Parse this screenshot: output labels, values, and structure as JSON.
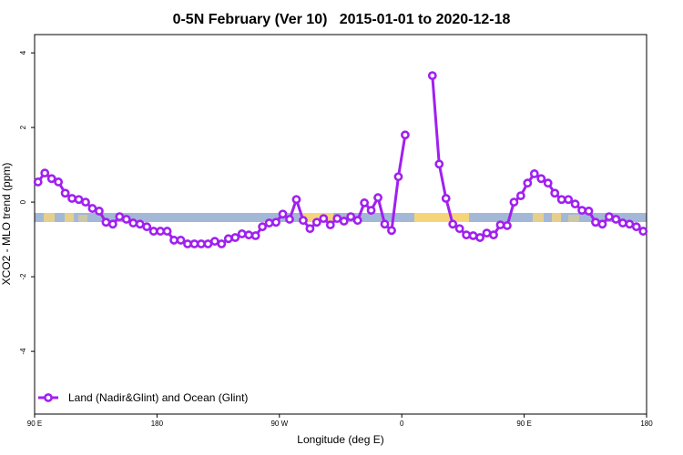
{
  "chart_data": {
    "type": "line",
    "title": "0-5N February (Ver 10)   2015-01-01 to 2020-12-18",
    "x_label": "Longitude (deg E)",
    "y_label": "XCO2 - MLO trend (ppm)",
    "xlim": [
      90,
      540
    ],
    "ylim": [
      -5.68,
      4.49
    ],
    "xticks": [
      {
        "value": 90,
        "label": "90 E"
      },
      180,
      {
        "value": 270,
        "label": "90 W"
      },
      {
        "value": 360,
        "label": "0"
      },
      {
        "value": 450,
        "label": "90 E"
      },
      {
        "value": 540,
        "label": "180"
      }
    ],
    "yticks": [
      4,
      2,
      0,
      -2,
      -4
    ],
    "grid": false,
    "legend": "bottom-left",
    "x": [
      92.5,
      97.5,
      102.5,
      107.5,
      112.5,
      117.5,
      122.5,
      127.5,
      132.5,
      137.5,
      142.5,
      147.5,
      152.5,
      157.5,
      162.5,
      167.5,
      172.5,
      177.5,
      182.5,
      187.5,
      192.5,
      197.5,
      202.5,
      207.5,
      212.5,
      217.5,
      222.5,
      227.5,
      232.5,
      237.5,
      242.5,
      247.5,
      252.5,
      257.5,
      262.5,
      267.5,
      272.5,
      277.5,
      282.5,
      287.5,
      292.5,
      297.5,
      302.5,
      307.5,
      312.5,
      317.5,
      322.5,
      327.5,
      332.5,
      337.5,
      342.5,
      347.5,
      352.5,
      357.5,
      362.5,
      367.5,
      372.5,
      377.5,
      382.5,
      387.5,
      392.5,
      397.5,
      402.5,
      407.5,
      412.5,
      417.5,
      422.5,
      427.5,
      432.5,
      437.5,
      442.5,
      447.5,
      452.5,
      457.5,
      462.5,
      467.5,
      472.5,
      477.5,
      482.5,
      487.5,
      492.5,
      497.5,
      502.5,
      507.5,
      512.5,
      517.5,
      522.5,
      527.5,
      532.5,
      537.5
    ],
    "series": [
      {
        "name": "Land (Nadir&Glint) and Ocean (Glint)",
        "color": "#a020f0",
        "values": [
          0.54,
          0.78,
          0.63,
          0.54,
          0.24,
          0.1,
          0.07,
          0,
          -0.17,
          -0.24,
          -0.54,
          -0.59,
          -0.39,
          -0.46,
          -0.56,
          -0.59,
          -0.66,
          -0.78,
          -0.78,
          -0.78,
          -1.02,
          -1.02,
          -1.12,
          -1.12,
          -1.12,
          -1.12,
          -1.05,
          -1.12,
          -0.98,
          -0.95,
          -0.85,
          -0.88,
          -0.9,
          -0.66,
          -0.56,
          -0.54,
          -0.32,
          -0.46,
          0.07,
          -0.49,
          -0.71,
          -0.54,
          -0.44,
          -0.61,
          -0.44,
          -0.51,
          -0.39,
          -0.49,
          -0.02,
          -0.22,
          0.12,
          -0.59,
          -0.76,
          0.68,
          1.8,
          null,
          null,
          null,
          3.39,
          1.02,
          0.1,
          -0.59,
          -0.71,
          -0.88,
          -0.9,
          -0.95,
          -0.83,
          -0.88,
          -0.61,
          -0.63,
          0,
          0.17,
          0.51,
          0.76,
          0.63,
          0.51,
          0.24,
          0.07,
          0.07,
          -0.05,
          -0.22,
          -0.24,
          -0.54,
          -0.59,
          -0.39,
          -0.46,
          -0.56,
          -0.59,
          -0.66,
          -0.78
        ]
      }
    ]
  }
}
